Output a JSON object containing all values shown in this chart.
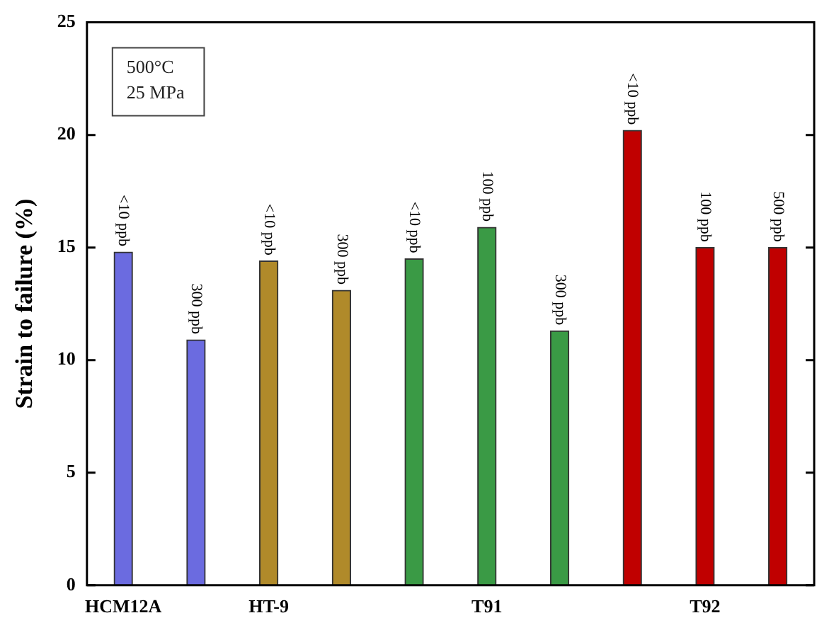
{
  "chart_data": {
    "type": "bar",
    "ylabel": "Strain to failure (%)",
    "categories": [
      "HCM12A",
      null,
      "HT-9",
      null,
      null,
      "T91",
      null,
      null,
      "T92",
      null
    ],
    "values": [
      14.8,
      10.9,
      14.4,
      13.1,
      14.5,
      15.9,
      11.3,
      20.2,
      15.0,
      15.0
    ],
    "colors": [
      "#6b6be0",
      "#6b6be0",
      "#b08a2a",
      "#b08a2a",
      "#3a9a45",
      "#3a9a45",
      "#3a9a45",
      "#c00000",
      "#c00000",
      "#c00000"
    ],
    "ylim": [
      0,
      25
    ],
    "yticks": [
      0,
      5,
      10,
      15,
      20,
      25
    ],
    "grid": false,
    "legend": false,
    "annotations": [
      "500°C",
      "25 MPa",
      {
        "text": "<10 ppb",
        "y": 14.8
      },
      {
        "text": "300 ppb",
        "y": 10.9
      },
      {
        "text": "<10 ppb",
        "y": 14.4
      },
      {
        "text": "300 ppb",
        "y": 13.1
      },
      {
        "text": "<10 ppb",
        "y": 14.5
      },
      {
        "text": "100 ppb",
        "y": 15.9
      },
      {
        "text": "300 ppb",
        "y": 11.3
      },
      {
        "text": "<10 ppb",
        "y": 20.2
      },
      {
        "text": "100 ppb",
        "y": 15.0
      },
      {
        "text": "500 ppb",
        "y": 15.0
      }
    ]
  }
}
